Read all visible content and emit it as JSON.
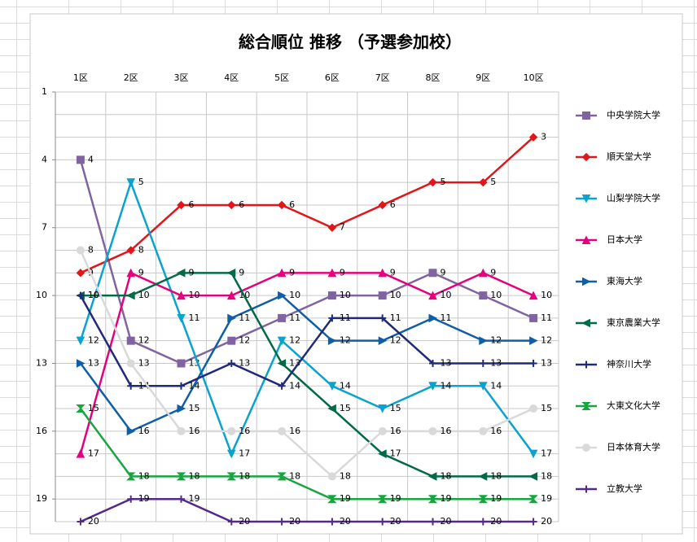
{
  "chart_data": {
    "type": "line",
    "title": "総合順位 推移 （予選参加校）",
    "categories": [
      "1区",
      "2区",
      "3区",
      "4区",
      "5区",
      "6区",
      "7区",
      "8区",
      "9区",
      "10区"
    ],
    "ylim": [
      1,
      20
    ],
    "y_inverted": true,
    "yticks": [
      1,
      4,
      7,
      10,
      13,
      16,
      19
    ],
    "grid": true,
    "grid_step": 1,
    "legend": "right",
    "series": [
      {
        "name": "中央学院大学",
        "color": "#8064a2",
        "marker": "square",
        "values": [
          4,
          12,
          13,
          12,
          11,
          10,
          10,
          9,
          10,
          11
        ]
      },
      {
        "name": "順天堂大学",
        "color": "#e0161b",
        "marker": "diamond",
        "values": [
          9,
          8,
          6,
          6,
          6,
          7,
          6,
          5,
          5,
          3
        ]
      },
      {
        "name": "山梨学院大学",
        "color": "#0aa3cf",
        "marker": "triangle-down",
        "values": [
          12,
          5,
          11,
          17,
          12,
          14,
          15,
          14,
          14,
          17
        ]
      },
      {
        "name": "日本大学",
        "color": "#e5007d",
        "marker": "triangle-up",
        "values": [
          17,
          9,
          10,
          10,
          9,
          9,
          9,
          10,
          9,
          10
        ]
      },
      {
        "name": "東海大学",
        "color": "#0e5ea8",
        "marker": "triangle-right",
        "values": [
          13,
          16,
          15,
          11,
          10,
          12,
          12,
          11,
          12,
          12
        ]
      },
      {
        "name": "東京農業大学",
        "color": "#006b45",
        "marker": "triangle-left",
        "values": [
          10,
          10,
          9,
          9,
          13,
          15,
          17,
          18,
          18,
          18
        ]
      },
      {
        "name": "神奈川大学",
        "color": "#1f2b78",
        "marker": "plus",
        "values": [
          10,
          14,
          14,
          13,
          14,
          11,
          11,
          13,
          13,
          13
        ]
      },
      {
        "name": "大東文化大学",
        "color": "#17a540",
        "marker": "hourglass",
        "values": [
          15,
          18,
          18,
          18,
          18,
          19,
          19,
          19,
          19,
          19
        ]
      },
      {
        "name": "日本体育大学",
        "color": "#d9d9d9",
        "marker": "circle",
        "values": [
          8,
          13,
          16,
          16,
          16,
          18,
          16,
          16,
          16,
          15
        ]
      },
      {
        "name": "立教大学",
        "color": "#552a87",
        "marker": "plus",
        "values": [
          20,
          19,
          19,
          20,
          20,
          20,
          20,
          20,
          20,
          20
        ]
      }
    ]
  }
}
